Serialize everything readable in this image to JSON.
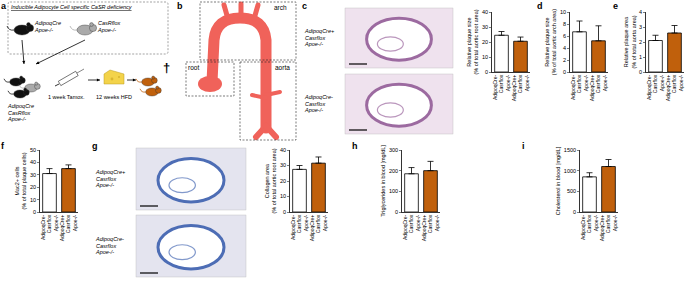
{
  "schematic": {
    "panel": "a",
    "title": "Inducible Adipocyte Cell specific CaSR deficiency",
    "parents": [
      "AdipoqCre Apoe-/-",
      "CasRflox Apoe-/-"
    ],
    "offspring": "AdipoqCre CasRflox Apoe-/-",
    "steps": [
      "1 week Tamox.",
      "12 weeks HFD"
    ],
    "end": "†"
  },
  "aorta_diagram": {
    "panel": "b",
    "labels": [
      "arch",
      "root",
      "aorta"
    ]
  },
  "micrographs": [
    {
      "panel": "c",
      "labels": [
        "AdipoqCre+ Casrflox Apoe-/-",
        "AdipoqCre- Casrflox Apoe-/-"
      ]
    },
    {
      "panel": "g",
      "labels": [
        "AdipoqCre+ Casrflox Apoe-/-",
        "AdipoqCre- Casrflox Apoe-/-"
      ]
    }
  ],
  "chart_data": [
    {
      "type": "bar",
      "y_label": "Relative plaque size (% of total aortic root area)",
      "categories": [
        "AdipoqCre- Casrflox Apoe-/-",
        "AdipoqCre+ Casrflox Apoe-/-"
      ],
      "values": [
        24.5,
        20.5
      ],
      "errors": [
        2.5,
        2.8
      ],
      "colors": [
        "#ffffff",
        "#c0600c"
      ],
      "ylim": [
        0,
        40
      ],
      "yticks": [
        0,
        10,
        20,
        30,
        40
      ]
    },
    {
      "panel": "d",
      "type": "bar",
      "y_label": "Relative plaque size (% of total aortic arch area)",
      "categories": [
        "AdipoqCre- Casrflox Apoe-/-",
        "AdipoqCre+ Casrflox Apoe-/-"
      ],
      "values": [
        6.7,
        5.2
      ],
      "errors": [
        1.8,
        2.5
      ],
      "colors": [
        "#ffffff",
        "#c0600c"
      ],
      "ylim": [
        0,
        10
      ],
      "yticks": [
        0,
        2,
        4,
        6,
        8,
        10
      ]
    },
    {
      "panel": "e",
      "type": "bar",
      "y_label": "Relative plaque area (% of total aorta area)",
      "categories": [
        "AdipoqCre- Casrflox Apoe-/-",
        "AdipoqCre+ Casrflox Apoe-/-"
      ],
      "values": [
        2.1,
        2.6
      ],
      "errors": [
        0.35,
        0.5
      ],
      "colors": [
        "#ffffff",
        "#c0600c"
      ],
      "ylim": [
        0,
        4
      ],
      "yticks": [
        0,
        1,
        2,
        3,
        4
      ]
    },
    {
      "panel": "f",
      "type": "bar",
      "y_label": "Mac2+ cells (% of total plaque cells)",
      "categories": [
        "AdipoqCre- Casrflox Apoe-/-",
        "AdipoqCre+ Casrflox Apoe-/-"
      ],
      "values": [
        31,
        35
      ],
      "errors": [
        4,
        3
      ],
      "colors": [
        "#ffffff",
        "#c0600c"
      ],
      "ylim": [
        0,
        50
      ],
      "yticks": [
        0,
        10,
        20,
        30,
        40,
        50
      ]
    },
    {
      "type": "bar",
      "y_label": "Collagen area (% of total aortic root area)",
      "categories": [
        "AdipoqCre- Casrflox Apoe-/-",
        "AdipoqCre+ Casrflox Apoe-/-"
      ],
      "values": [
        27.5,
        31.5
      ],
      "errors": [
        2.5,
        4
      ],
      "colors": [
        "#ffffff",
        "#c0600c"
      ],
      "ylim": [
        0,
        40
      ],
      "yticks": [
        0,
        10,
        20,
        30,
        40
      ]
    },
    {
      "panel": "h",
      "type": "bar",
      "y_label": "Triglycerides in blood [mg/dL]",
      "categories": [
        "AdipoqCre- Casrflox Apoe-/-",
        "AdipoqCre+ Casrflox Apoe-/-"
      ],
      "values": [
        185,
        200
      ],
      "errors": [
        30,
        45
      ],
      "colors": [
        "#ffffff",
        "#c0600c"
      ],
      "ylim": [
        0,
        300
      ],
      "yticks": [
        0,
        100,
        200,
        300
      ]
    },
    {
      "panel": "i",
      "type": "bar",
      "y_label": "Cholesterol in blood [mg/dL]",
      "categories": [
        "AdipoqCre- Casrflox Apoe-/-",
        "AdipoqCre+ Casrflox Apoe-/-"
      ],
      "values": [
        850,
        1100
      ],
      "errors": [
        100,
        170
      ],
      "colors": [
        "#ffffff",
        "#c0600c"
      ],
      "ylim": [
        0,
        1500
      ],
      "yticks": [
        0,
        500,
        1000,
        1500
      ]
    }
  ]
}
